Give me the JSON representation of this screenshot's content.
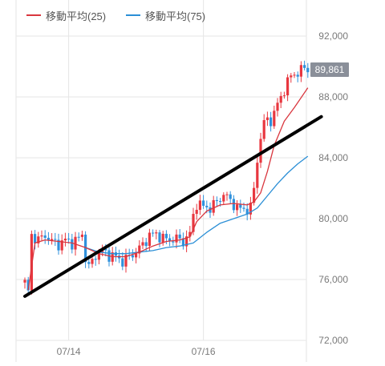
{
  "legend": [
    {
      "label": "移動平均(25)",
      "color": "#d9363e"
    },
    {
      "label": "移動平均(75)",
      "color": "#2b8fd6"
    }
  ],
  "current_price_label": "89,861",
  "chart_data": {
    "type": "candlestick",
    "title": "",
    "xlabel": "",
    "ylabel": "",
    "ylim": [
      72000,
      92000
    ],
    "y_ticks": [
      "92,000",
      "88,000",
      "84,000",
      "80,000",
      "76,000",
      "72,000"
    ],
    "y_tick_values": [
      92000,
      88000,
      84000,
      80000,
      76000,
      72000
    ],
    "x_ticks": [
      "07/14",
      "07/16"
    ],
    "grid": true,
    "colors": {
      "up": "#e8373f",
      "down": "#2f91dc",
      "ma25": "#d9363e",
      "ma75": "#2b8fd6",
      "trend": "#000000"
    },
    "price_path": [
      [
        0,
        75800
      ],
      [
        1,
        75200
      ],
      [
        2,
        78900
      ],
      [
        4,
        78600
      ],
      [
        6,
        78900
      ],
      [
        8,
        78500
      ],
      [
        10,
        78300
      ],
      [
        12,
        78600
      ],
      [
        14,
        78400
      ],
      [
        16,
        78700
      ],
      [
        17,
        79000
      ],
      [
        18,
        77400
      ],
      [
        19,
        76800
      ],
      [
        21,
        77600
      ],
      [
        23,
        77900
      ],
      [
        25,
        77600
      ],
      [
        27,
        77500
      ],
      [
        29,
        77200
      ],
      [
        31,
        77500
      ],
      [
        33,
        77800
      ],
      [
        35,
        78300
      ],
      [
        37,
        78900
      ],
      [
        39,
        79000
      ],
      [
        41,
        78700
      ],
      [
        43,
        78600
      ],
      [
        45,
        78700
      ],
      [
        47,
        78500
      ],
      [
        49,
        79000
      ],
      [
        50,
        80200
      ],
      [
        51,
        81000
      ],
      [
        53,
        80800
      ],
      [
        55,
        80700
      ],
      [
        57,
        81100
      ],
      [
        59,
        81600
      ],
      [
        61,
        81200
      ],
      [
        63,
        80700
      ],
      [
        65,
        80600
      ],
      [
        67,
        80700
      ],
      [
        68,
        82000
      ],
      [
        69,
        83800
      ],
      [
        70,
        85400
      ],
      [
        71,
        86200
      ],
      [
        72,
        86600
      ],
      [
        73,
        86400
      ],
      [
        75,
        87500
      ],
      [
        77,
        88500
      ],
      [
        79,
        89400
      ],
      [
        81,
        89600
      ],
      [
        83,
        89900
      ],
      [
        84,
        89861
      ]
    ],
    "ma25": [
      [
        1,
        75300
      ],
      [
        3,
        78400
      ],
      [
        6,
        78600
      ],
      [
        10,
        78500
      ],
      [
        14,
        78400
      ],
      [
        18,
        78100
      ],
      [
        22,
        77700
      ],
      [
        26,
        77500
      ],
      [
        30,
        77500
      ],
      [
        34,
        77800
      ],
      [
        38,
        78200
      ],
      [
        42,
        78500
      ],
      [
        46,
        78600
      ],
      [
        49,
        78800
      ],
      [
        51,
        79800
      ],
      [
        54,
        80500
      ],
      [
        58,
        80900
      ],
      [
        62,
        81000
      ],
      [
        66,
        80900
      ],
      [
        68,
        81100
      ],
      [
        70,
        81700
      ],
      [
        72,
        83100
      ],
      [
        74,
        84800
      ],
      [
        77,
        86400
      ],
      [
        80,
        87300
      ],
      [
        84,
        88600
      ]
    ],
    "ma75": [
      [
        18,
        78100
      ],
      [
        22,
        77800
      ],
      [
        26,
        77700
      ],
      [
        30,
        77700
      ],
      [
        34,
        77800
      ],
      [
        38,
        77900
      ],
      [
        42,
        78100
      ],
      [
        46,
        78200
      ],
      [
        50,
        78400
      ],
      [
        54,
        79100
      ],
      [
        58,
        79700
      ],
      [
        62,
        80000
      ],
      [
        66,
        80300
      ],
      [
        69,
        80700
      ],
      [
        72,
        81500
      ],
      [
        75,
        82300
      ],
      [
        78,
        83000
      ],
      [
        81,
        83600
      ],
      [
        84,
        84100
      ]
    ],
    "trend_line": [
      [
        0,
        74900
      ],
      [
        88,
        86700
      ]
    ],
    "x_tick_index": [
      13,
      53
    ],
    "n_points": 85
  }
}
